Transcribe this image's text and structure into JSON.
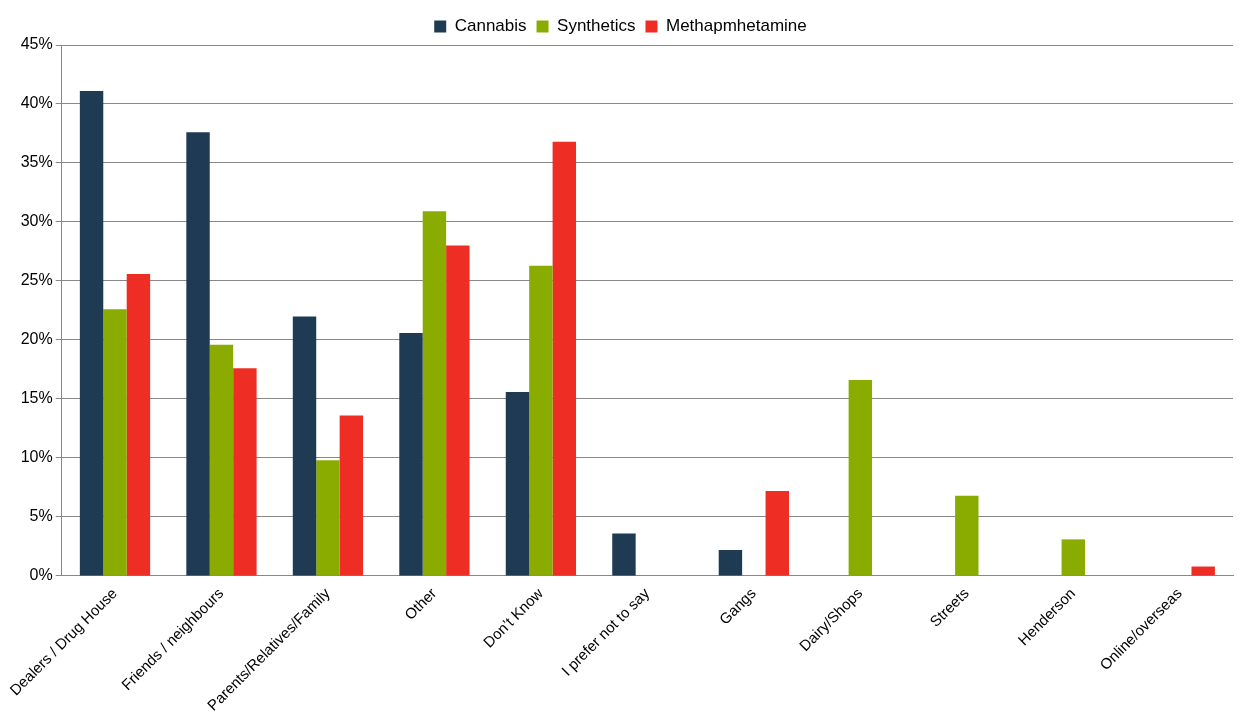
{
  "chart_data": {
    "type": "bar",
    "categories": [
      "Dealers / Drug House",
      "Friends / neighbours",
      "Parents/Relatives/Family",
      "Other",
      "Don’t Know",
      "I prefer not to say",
      "Gangs",
      "Dairy/Shops",
      "Streets",
      "Henderson",
      "Online/overseas"
    ],
    "series": [
      {
        "name": "Cannabis",
        "color": "#1f3b53",
        "values": [
          41.1,
          37.6,
          22.0,
          20.6,
          15.6,
          3.6,
          2.2,
          null,
          null,
          null,
          null
        ]
      },
      {
        "name": "Synthetics",
        "color": "#8aab00",
        "values": [
          22.6,
          19.6,
          9.8,
          30.9,
          26.3,
          null,
          null,
          16.6,
          6.8,
          3.1,
          null
        ]
      },
      {
        "name": "Methapmhetamine",
        "color": "#ee2d24",
        "values": [
          25.6,
          17.6,
          13.6,
          28.0,
          36.8,
          null,
          7.2,
          null,
          null,
          null,
          0.8
        ]
      }
    ],
    "ylim": [
      0,
      45
    ],
    "yticks": [
      {
        "value": 0,
        "label": "0%"
      },
      {
        "value": 5,
        "label": "5%"
      },
      {
        "value": 10,
        "label": "10%"
      },
      {
        "value": 15,
        "label": "15%"
      },
      {
        "value": 20,
        "label": "20%"
      },
      {
        "value": 25,
        "label": "25%"
      },
      {
        "value": 30,
        "label": "30%"
      },
      {
        "value": 35,
        "label": "35%"
      },
      {
        "value": 40,
        "label": "40%"
      },
      {
        "value": 45,
        "label": "45%"
      }
    ],
    "grid": "y",
    "legend": "top"
  }
}
